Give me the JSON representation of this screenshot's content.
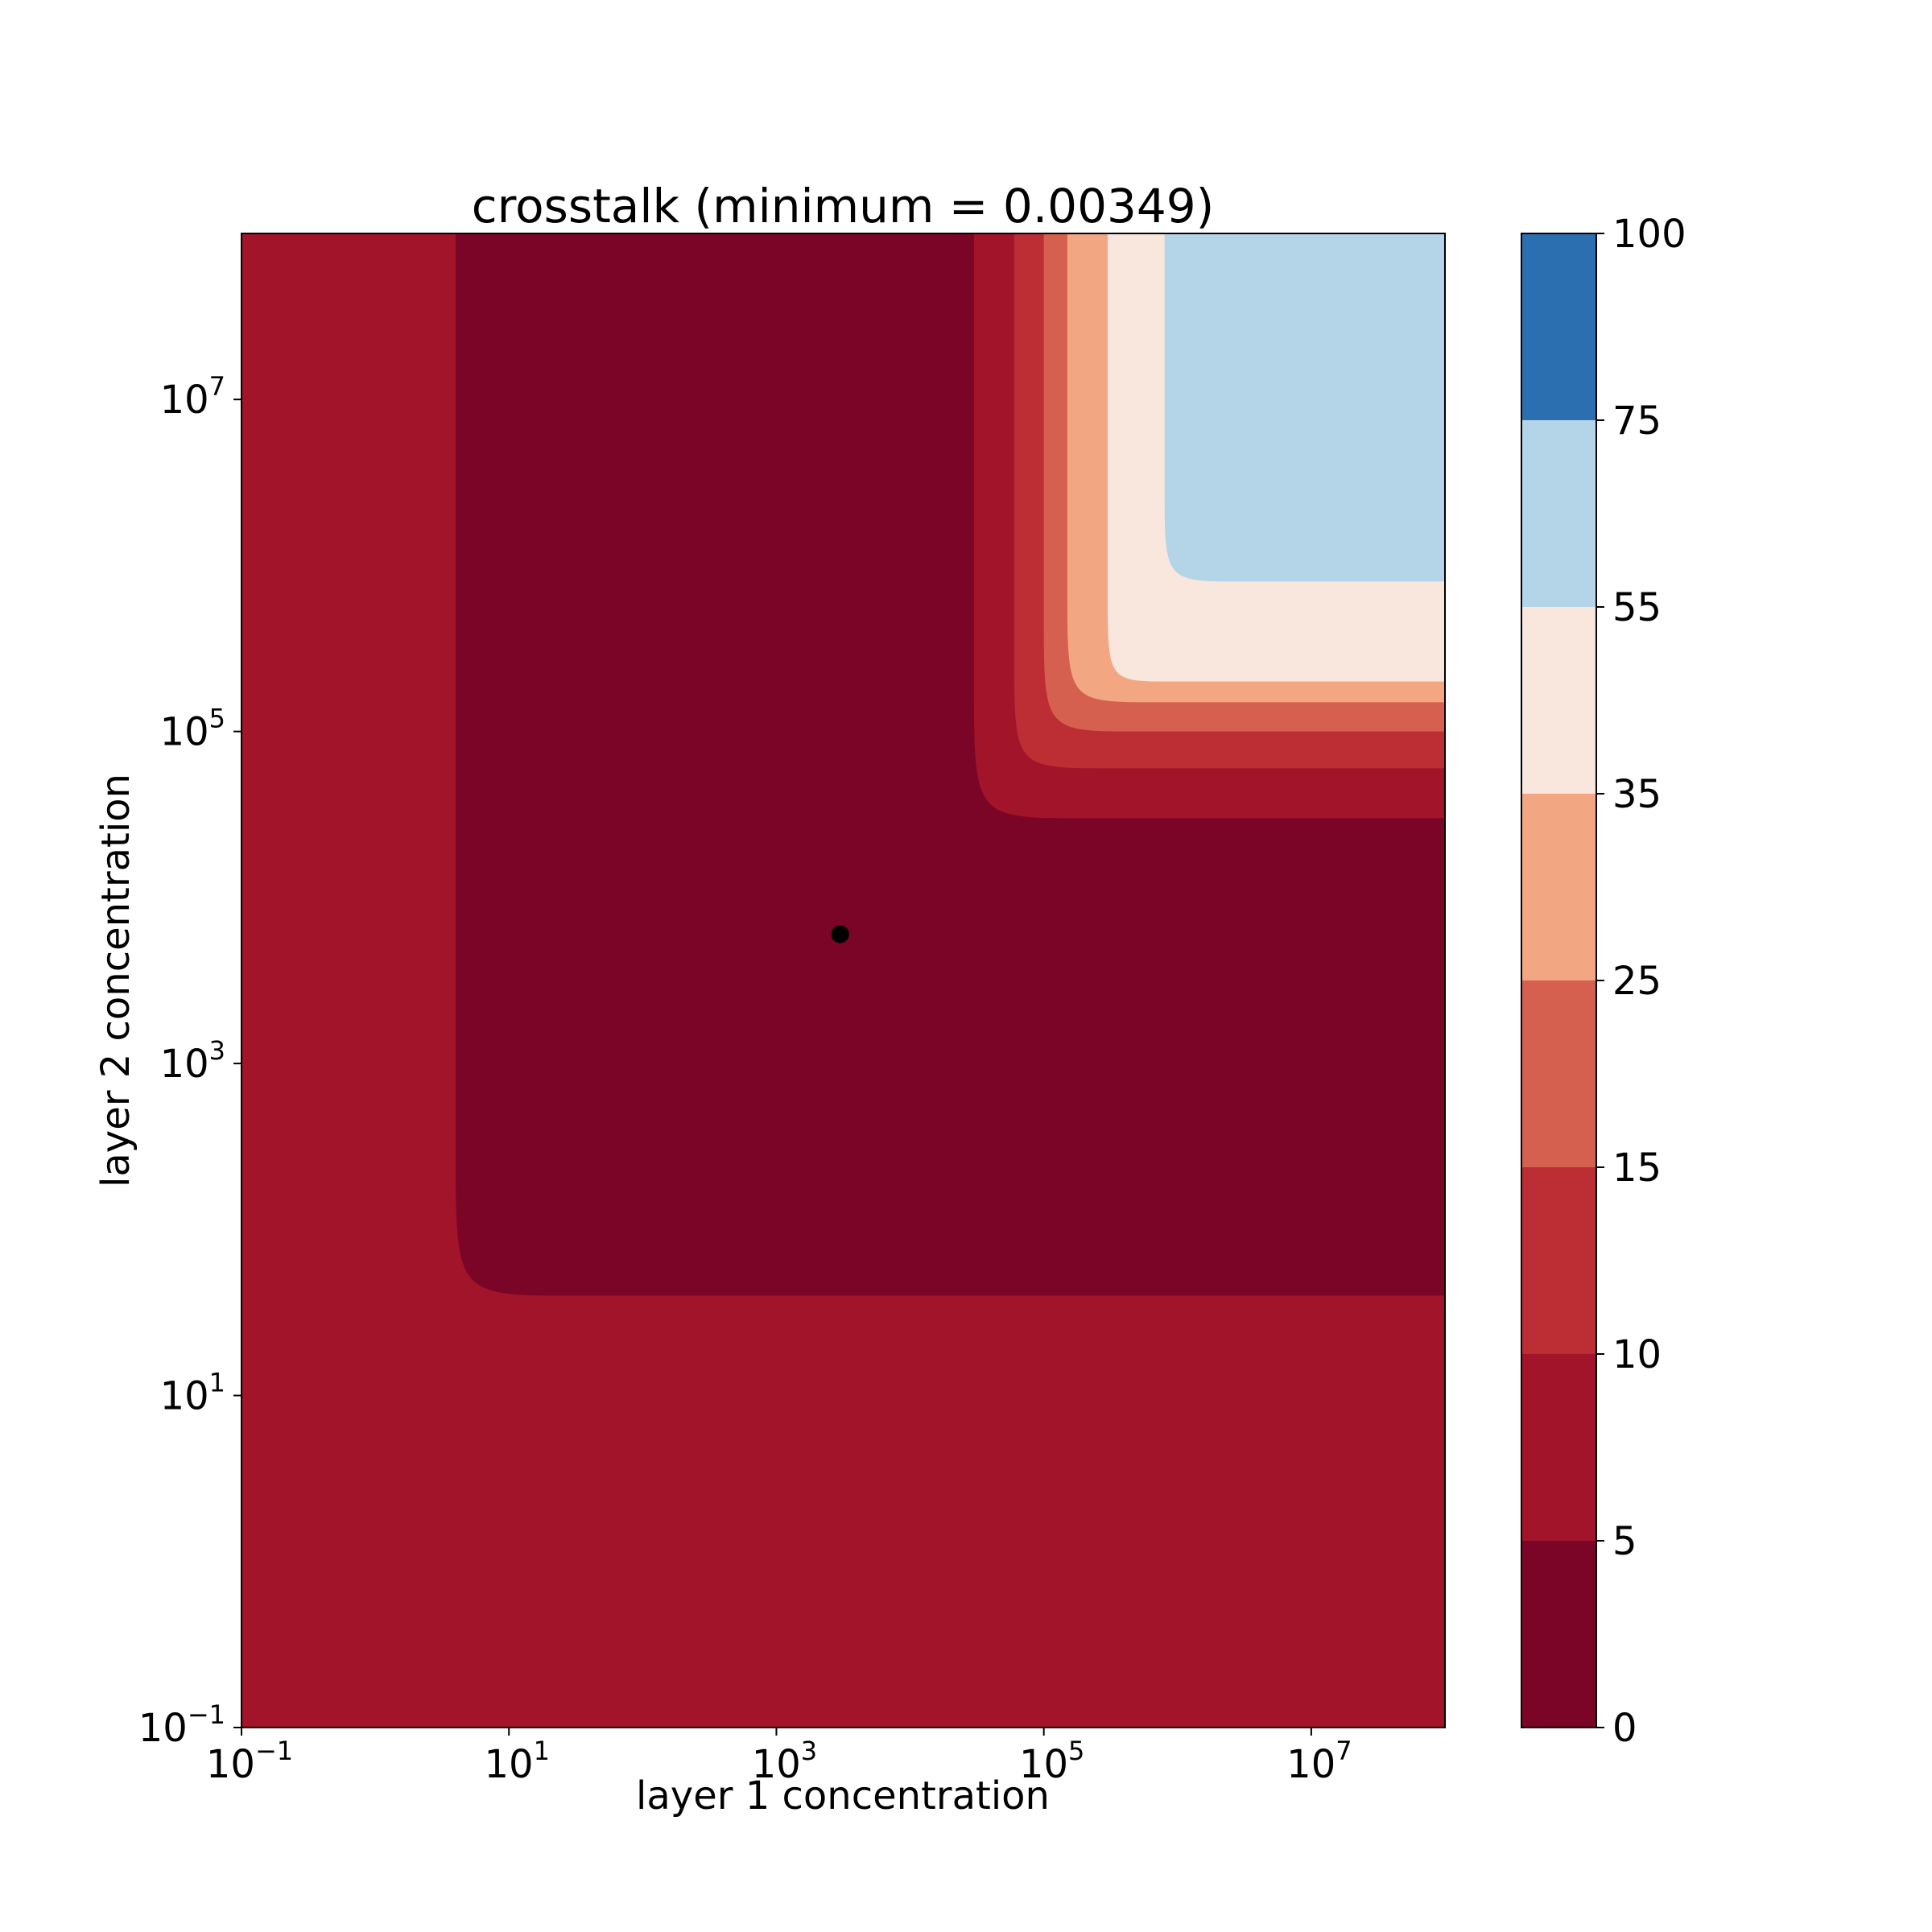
{
  "chart_data": {
    "type": "contour",
    "title": "crosstalk (minimum = 0.00349)",
    "xlabel": "layer 1 concentration",
    "ylabel": "layer 2 concentration",
    "xscale": "log",
    "yscale": "log",
    "xlim": [
      0.1,
      100000000
    ],
    "ylim": [
      0.1,
      100000000
    ],
    "grid": false,
    "x_ticks": [
      {
        "base": "10",
        "exp": "−1",
        "value": 0.1
      },
      {
        "base": "10",
        "exp": "1",
        "value": 10
      },
      {
        "base": "10",
        "exp": "3",
        "value": 1000
      },
      {
        "base": "10",
        "exp": "5",
        "value": 100000
      },
      {
        "base": "10",
        "exp": "7",
        "value": 10000000
      }
    ],
    "y_ticks": [
      {
        "base": "10",
        "exp": "−1",
        "value": 0.1
      },
      {
        "base": "10",
        "exp": "1",
        "value": 10
      },
      {
        "base": "10",
        "exp": "3",
        "value": 1000
      },
      {
        "base": "10",
        "exp": "5",
        "value": 100000
      },
      {
        "base": "10",
        "exp": "7",
        "value": 10000000
      }
    ],
    "levels": [
      0,
      5,
      10,
      15,
      25,
      35,
      55,
      75,
      100
    ],
    "level_labels": [
      "0",
      "5",
      "10",
      "15",
      "25",
      "35",
      "55",
      "75",
      "100"
    ],
    "level_colors": [
      "#7a0526",
      "#a11429",
      "#bd2d34",
      "#d6604f",
      "#f2a682",
      "#f9e6dd",
      "#b3d5e7",
      "#2c6fb0"
    ],
    "outer_region_value_band": 1,
    "regions": [
      {
        "band": 0,
        "x_min": 4,
        "y_min": 40,
        "corner": [
          30,
          300
        ]
      },
      {
        "band": 1,
        "x_min": 30000,
        "y_min": 30000,
        "corner": [
          200000,
          200000
        ]
      },
      {
        "band": 2,
        "x_min": 60000,
        "y_min": 60000,
        "corner": [
          300000,
          300000
        ]
      },
      {
        "band": 3,
        "x_min": 100000,
        "y_min": 100000,
        "corner": [
          500000,
          500000
        ]
      },
      {
        "band": 4,
        "x_min": 150000,
        "y_min": 150000,
        "corner": [
          700000,
          700000
        ]
      },
      {
        "band": 5,
        "x_min": 300000,
        "y_min": 200000,
        "corner": [
          900000,
          700000
        ]
      },
      {
        "band": 6,
        "x_min": 800000,
        "y_min": 800000,
        "corner": [
          3000000,
          3000000
        ]
      }
    ],
    "minimum_point": {
      "x": 3000,
      "y": 6000
    }
  }
}
